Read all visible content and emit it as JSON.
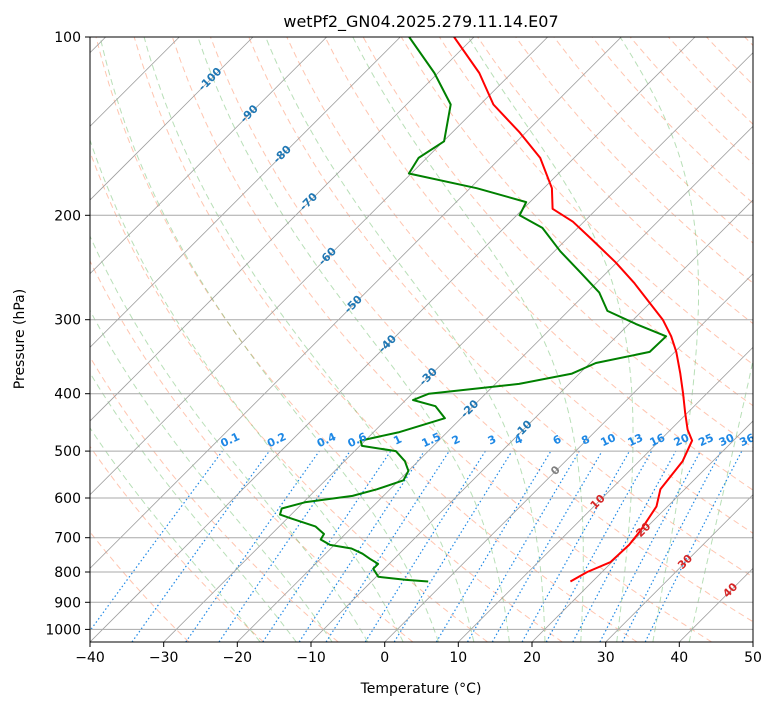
{
  "chart_data": {
    "type": "skew-t",
    "title": "wetPf2_GN04.2025.279.11.14.E07",
    "xlabel": "Temperature (°C)",
    "ylabel": "Pressure (hPa)",
    "xlim": [
      -40,
      50
    ],
    "ylim_hpa": [
      1050,
      100
    ],
    "x_ticks": [
      "−40",
      "−30",
      "−20",
      "−10",
      "0",
      "10",
      "20",
      "30",
      "40",
      "50"
    ],
    "y_ticks": [
      "100",
      "200",
      "300",
      "400",
      "500",
      "600",
      "700",
      "800",
      "900",
      "1000"
    ],
    "colors": {
      "temperature": "#ff0000",
      "dewpoint": "#008000",
      "dry_adiabat": "#ff7f50",
      "moist_adiabat": "#4daf4a",
      "mixing_ratio": "#1e88e5",
      "isotherm": "#808080",
      "isotherm_label_cold": "#1f77b4",
      "isotherm_label_warm": "#d62728",
      "isotherm_label_zero": "#808080"
    },
    "isotherm_labels": [
      "-100",
      "-90",
      "-80",
      "-70",
      "-60",
      "-50",
      "-40",
      "-30",
      "-20",
      "-10",
      "0",
      "10",
      "20",
      "30",
      "40"
    ],
    "mixing_ratio_labels": [
      "0.1",
      "0.2",
      "0.4",
      "0.6",
      "1",
      "1.5",
      "2",
      "3",
      "4",
      "6",
      "8",
      "10",
      "13",
      "16",
      "20",
      "25",
      "30",
      "36"
    ],
    "series": [
      {
        "name": "Temperature",
        "points": [
          {
            "p": 830,
            "t": 17.0
          },
          {
            "p": 800,
            "t": 18.0
          },
          {
            "p": 770,
            "t": 19.8
          },
          {
            "p": 720,
            "t": 20.0
          },
          {
            "p": 680,
            "t": 19.6
          },
          {
            "p": 620,
            "t": 18.5
          },
          {
            "p": 580,
            "t": 16.7
          },
          {
            "p": 520,
            "t": 15.9
          },
          {
            "p": 480,
            "t": 14.4
          },
          {
            "p": 460,
            "t": 12.3
          },
          {
            "p": 430,
            "t": 9.6
          },
          {
            "p": 400,
            "t": 6.8
          },
          {
            "p": 370,
            "t": 3.7
          },
          {
            "p": 340,
            "t": 0.2
          },
          {
            "p": 320,
            "t": -2.6
          },
          {
            "p": 300,
            "t": -6.0
          },
          {
            "p": 280,
            "t": -10.3
          },
          {
            "p": 260,
            "t": -14.9
          },
          {
            "p": 240,
            "t": -20.2
          },
          {
            "p": 220,
            "t": -26.4
          },
          {
            "p": 205,
            "t": -31.5
          },
          {
            "p": 195,
            "t": -36.0
          },
          {
            "p": 180,
            "t": -38.9
          },
          {
            "p": 160,
            "t": -44.6
          },
          {
            "p": 145,
            "t": -50.8
          },
          {
            "p": 130,
            "t": -58.2
          },
          {
            "p": 115,
            "t": -64.4
          },
          {
            "p": 100,
            "t": -72.7
          }
        ]
      },
      {
        "name": "Dewpoint",
        "points": [
          {
            "p": 830,
            "t": -2.3
          },
          {
            "p": 825,
            "t": -5.5
          },
          {
            "p": 815,
            "t": -9.7
          },
          {
            "p": 790,
            "t": -11.5
          },
          {
            "p": 775,
            "t": -11.5
          },
          {
            "p": 760,
            "t": -13.3
          },
          {
            "p": 745,
            "t": -15.0
          },
          {
            "p": 730,
            "t": -17.2
          },
          {
            "p": 720,
            "t": -20.6
          },
          {
            "p": 705,
            "t": -22.6
          },
          {
            "p": 690,
            "t": -22.9
          },
          {
            "p": 670,
            "t": -25.1
          },
          {
            "p": 650,
            "t": -29.4
          },
          {
            "p": 640,
            "t": -31.5
          },
          {
            "p": 625,
            "t": -32.1
          },
          {
            "p": 610,
            "t": -29.8
          },
          {
            "p": 595,
            "t": -24.2
          },
          {
            "p": 580,
            "t": -21.8
          },
          {
            "p": 560,
            "t": -19.4
          },
          {
            "p": 540,
            "t": -20.0
          },
          {
            "p": 520,
            "t": -21.8
          },
          {
            "p": 500,
            "t": -24.4
          },
          {
            "p": 490,
            "t": -29.7
          },
          {
            "p": 480,
            "t": -30.6
          },
          {
            "p": 465,
            "t": -26.6
          },
          {
            "p": 440,
            "t": -22.2
          },
          {
            "p": 420,
            "t": -25.1
          },
          {
            "p": 410,
            "t": -29.0
          },
          {
            "p": 400,
            "t": -27.7
          },
          {
            "p": 385,
            "t": -16.8
          },
          {
            "p": 370,
            "t": -11.0
          },
          {
            "p": 355,
            "t": -9.2
          },
          {
            "p": 340,
            "t": -3.4
          },
          {
            "p": 320,
            "t": -3.3
          },
          {
            "p": 305,
            "t": -9.1
          },
          {
            "p": 290,
            "t": -14.7
          },
          {
            "p": 270,
            "t": -18.3
          },
          {
            "p": 250,
            "t": -23.5
          },
          {
            "p": 230,
            "t": -29.2
          },
          {
            "p": 210,
            "t": -34.8
          },
          {
            "p": 200,
            "t": -39.6
          },
          {
            "p": 190,
            "t": -40.5
          },
          {
            "p": 180,
            "t": -49.1
          },
          {
            "p": 170,
            "t": -60.3
          },
          {
            "p": 160,
            "t": -61.1
          },
          {
            "p": 150,
            "t": -59.9
          },
          {
            "p": 130,
            "t": -64.0
          },
          {
            "p": 115,
            "t": -70.5
          },
          {
            "p": 100,
            "t": -78.8
          }
        ]
      }
    ]
  }
}
